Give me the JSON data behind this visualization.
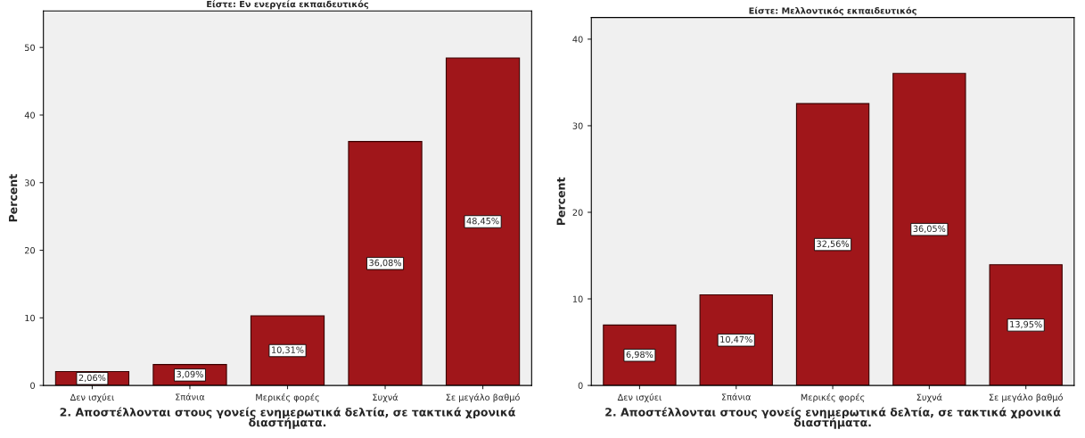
{
  "chart_data": [
    {
      "type": "bar",
      "title": "Είστε: Εν ενεργεία εκπαιδευτικός",
      "xlabel": "2. Αποστέλλονται στους γονείς ενημερωτικά δελτία, σε τακτικά χρονικά\nδιαστήματα.",
      "ylabel": "Percent",
      "categories": [
        "Δεν ισχύει",
        "Σπάνια",
        "Μερικές φορές",
        "Συχνά",
        "Σε μεγάλο βαθμό"
      ],
      "values": [
        2.06,
        3.09,
        10.31,
        36.08,
        48.45
      ],
      "value_labels": [
        "2,06%",
        "3,09%",
        "10,31%",
        "36,08%",
        "48,45%"
      ],
      "color": "#a0161a",
      "ylim": [
        0,
        55.4
      ],
      "yticks": [
        0,
        10,
        20,
        30,
        40,
        50
      ],
      "grid": false,
      "legend": false
    },
    {
      "type": "bar",
      "title": "Είστε: Μελλοντικός εκπαιδευτικός",
      "xlabel": "2. Αποστέλλονται στους γονείς ενημερωτικά δελτία, σε τακτικά χρονικά\nδιαστήματα.",
      "ylabel": "Percent",
      "categories": [
        "Δεν ισχύει",
        "Σπάνια",
        "Μερικές φορές",
        "Συχνά",
        "Σε μεγάλο βαθμό"
      ],
      "values": [
        6.98,
        10.47,
        32.56,
        36.05,
        13.95
      ],
      "value_labels": [
        "6,98%",
        "10,47%",
        "32,56%",
        "36,05%",
        "13,95%"
      ],
      "color": "#a0161a",
      "ylim": [
        0,
        42.5
      ],
      "yticks": [
        0,
        10,
        20,
        30,
        40
      ],
      "grid": false,
      "legend": false
    }
  ]
}
